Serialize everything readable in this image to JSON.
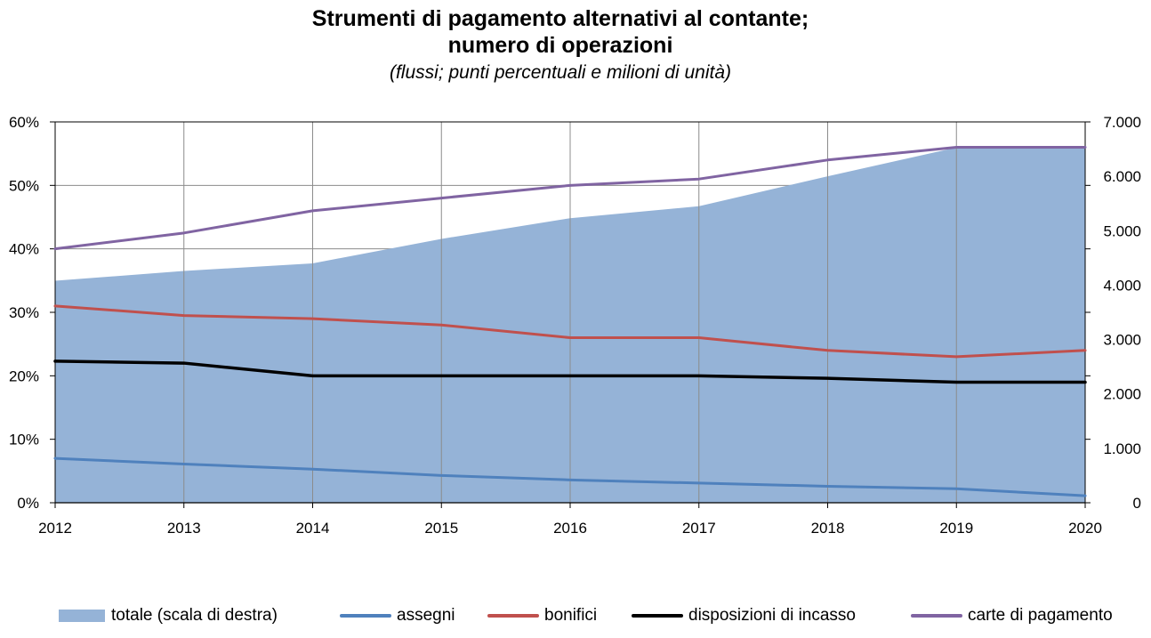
{
  "header": {
    "title_line1": "Strumenti di pagamento alternativi al contante;",
    "title_line2": "numero di operazioni",
    "subtitle": "(flussi; punti percentuali e milioni di unità)"
  },
  "chart_data": {
    "type": "line",
    "title": "Strumenti di pagamento alternativi al contante; numero di operazioni",
    "subtitle": "(flussi; punti percentuali e milioni di unità)",
    "categories": [
      "2012",
      "2013",
      "2014",
      "2015",
      "2016",
      "2017",
      "2018",
      "2019",
      "2020"
    ],
    "left_axis": {
      "ylim": [
        0,
        60
      ],
      "ticks": [
        "0%",
        "10%",
        "20%",
        "30%",
        "40%",
        "50%",
        "60%"
      ]
    },
    "right_axis": {
      "ylim": [
        0,
        7000
      ],
      "ticks": [
        "0",
        "1.000",
        "2.000",
        "3.000",
        "4.000",
        "5.000",
        "6.000",
        "7.000"
      ]
    },
    "grid": true,
    "legend_position": "bottom",
    "area_series": {
      "name": "totale (scala di destra)",
      "axis": "right",
      "color": "#95b3d7",
      "values": [
        4080,
        4260,
        4400,
        4850,
        5230,
        5450,
        6000,
        6530,
        6530
      ]
    },
    "series": [
      {
        "name": "assegni",
        "axis": "left",
        "color": "#4f81bd",
        "values": [
          7.0,
          6.1,
          5.3,
          4.3,
          3.6,
          3.1,
          2.6,
          2.2,
          1.1
        ]
      },
      {
        "name": "bonifici",
        "axis": "left",
        "color": "#c0504d",
        "values": [
          31.0,
          29.5,
          29.0,
          28.0,
          26.0,
          26.0,
          24.0,
          23.0,
          24.0
        ]
      },
      {
        "name": "disposizioni di incasso",
        "axis": "left",
        "color": "#000000",
        "values": [
          22.3,
          22.0,
          20.0,
          20.0,
          20.0,
          20.0,
          19.6,
          19.0,
          19.0
        ]
      },
      {
        "name": "carte di pagamento",
        "axis": "left",
        "color": "#8064a2",
        "values": [
          40.0,
          42.5,
          46.0,
          48.0,
          50.0,
          51.0,
          54.0,
          56.0,
          56.0
        ]
      }
    ]
  }
}
